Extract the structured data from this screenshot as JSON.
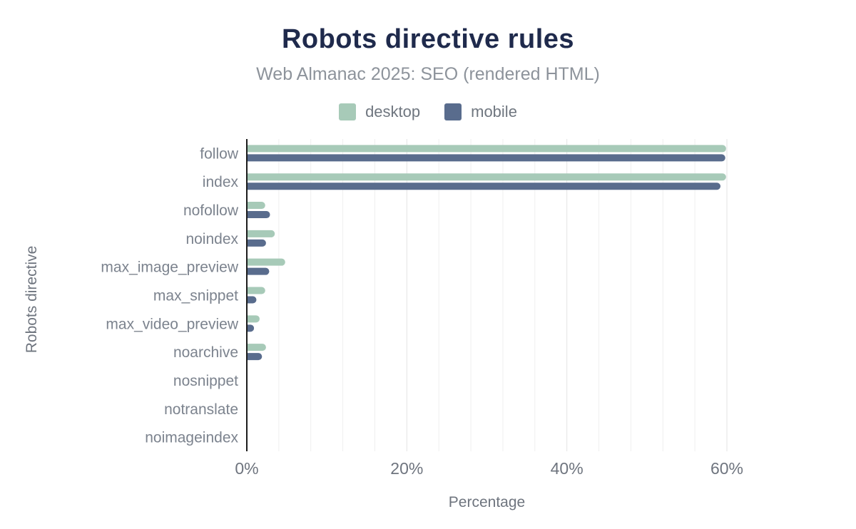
{
  "header": {
    "title": "Robots directive rules",
    "subtitle": "Web Almanac 2025: SEO (rendered HTML)"
  },
  "legend": {
    "items": [
      {
        "label": "desktop",
        "color": "#a7cab8"
      },
      {
        "label": "mobile",
        "color": "#596c8d"
      }
    ]
  },
  "colors": {
    "title_text": "#1f2a4c",
    "subtitle_text": "#8d939b",
    "category_text": "#7c838e",
    "tick_text": "#6e747e",
    "axis_line": "#1c1c1c",
    "gridline_minor": "#efefef",
    "gridline_major": "#e3e3e3",
    "desktop_bar": "#a7cab8",
    "mobile_bar": "#596c8d",
    "background": "#ffffff"
  },
  "chart_data": {
    "type": "bar",
    "orientation": "horizontal",
    "title": "Robots directive rules",
    "subtitle": "Web Almanac 2025: SEO (rendered HTML)",
    "xlabel": "Percentage",
    "ylabel": "Robots directive",
    "xlim": [
      0,
      60
    ],
    "x_tick_values": [
      0,
      20,
      40,
      60
    ],
    "x_tick_labels": [
      "0%",
      "20%",
      "40%",
      "60%"
    ],
    "minor_grid_step": 4,
    "grid": "vertical-only",
    "legend_position": "top",
    "categories": [
      "follow",
      "index",
      "nofollow",
      "noindex",
      "max_image_preview",
      "max_snippet",
      "max_video_preview",
      "noarchive",
      "nosnippet",
      "notranslate",
      "noimageindex"
    ],
    "series": [
      {
        "name": "desktop",
        "color": "#a7cab8",
        "values": [
          59.9,
          59.9,
          2.3,
          3.5,
          4.8,
          2.3,
          1.6,
          2.4,
          0.0,
          0.0,
          0.0
        ]
      },
      {
        "name": "mobile",
        "color": "#596c8d",
        "values": [
          59.8,
          59.2,
          2.9,
          2.4,
          2.8,
          1.2,
          0.9,
          1.9,
          0.0,
          0.0,
          0.0
        ]
      }
    ]
  }
}
